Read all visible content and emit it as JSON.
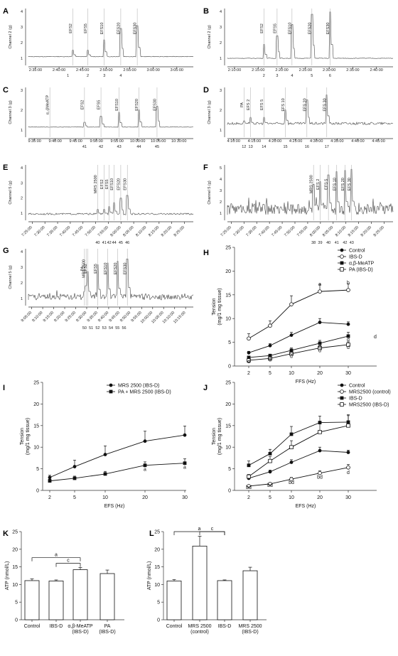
{
  "chart_data": [
    {
      "panel": "A",
      "type": "line",
      "ylabel": "Channel 2 (g)",
      "yticks": [
        "1",
        "2",
        "3",
        "4"
      ],
      "xticks": [
        "2:35:00",
        "2:40:00",
        "2:45:00",
        "2:50:00",
        "2:55:00",
        "3:00:00",
        "3:05:00"
      ],
      "events": [
        "EFS2",
        "EFS5",
        "EFS10",
        "EFS20",
        "EFS30"
      ],
      "markers": [
        "1",
        "2",
        "3",
        "4"
      ]
    },
    {
      "panel": "B",
      "type": "line",
      "ylabel": "Channel 2 (g)",
      "yticks": [
        "1",
        "2",
        "3",
        "4"
      ],
      "xticks": [
        "2:10:00",
        "2:15:00",
        "2:20:00",
        "2:25:00",
        "2:30:00",
        "2:35:00",
        "2:40:00"
      ],
      "events": [
        "EFS2",
        "EFS5",
        "EFS10",
        "EFS20",
        "EFS30"
      ],
      "markers": [
        "2",
        "3",
        "4",
        "5",
        "6"
      ]
    },
    {
      "panel": "C",
      "type": "line",
      "ylabel": "Channel 3 (g)",
      "yticks": [
        "1",
        "2",
        "3"
      ],
      "xticks": [
        "9:35:00",
        "9:40:00",
        "9:45:00",
        "9:50:00",
        "9:55:00",
        "10:00:00",
        "10:05:00",
        "10:10:00"
      ],
      "events": [
        "α,-βMeATP",
        "EFS2",
        "EFS5",
        "EFS10",
        "EFS20",
        "EFS30"
      ],
      "markers": [
        "41",
        "42",
        "43",
        "44",
        "45"
      ]
    },
    {
      "panel": "D",
      "type": "line",
      "ylabel": "Channel 3 (g)",
      "yticks": [
        "1",
        "2",
        "3"
      ],
      "xticks": [
        "4:10:00",
        "4:15:00",
        "4:20:00",
        "4:25:00",
        "4:30:00",
        "4:35:00",
        "4:40:00",
        "4:45:00"
      ],
      "events": [
        "PA",
        "EFS 2",
        "EFS 5",
        "EFS 10",
        "EFS 20",
        "EFS 30"
      ],
      "markers": [
        "12",
        "13",
        "14",
        "15",
        "16",
        "17"
      ]
    },
    {
      "panel": "E",
      "type": "line",
      "ylabel": "Channel 5 (g)",
      "yticks": [
        "1",
        "2",
        "3",
        "4"
      ],
      "xticks": [
        "7:25:00",
        "7:30:00",
        "7:35:00",
        "7:40:00",
        "7:45:00",
        "7:50:00",
        "7:55:00",
        "8:00:00",
        "8:05:00",
        "8:10:00",
        "8:15:00",
        "8:20:00",
        "8:25:00"
      ],
      "events": [
        "MRS 2500",
        "EFS2",
        "EFS5",
        "EFS10",
        "EFS20",
        "EFS30"
      ],
      "markers": [
        "40",
        "41",
        "42",
        "44",
        "45",
        "46"
      ]
    },
    {
      "panel": "F",
      "type": "line",
      "ylabel": "Channel 5 (g)",
      "yticks": [
        "1",
        "2",
        "3",
        "4",
        "5"
      ],
      "xticks": [
        "7:25:00",
        "7:30:00",
        "7:35:00",
        "7:40:00",
        "7:45:00",
        "7:50:00",
        "7:55:00",
        "8:00:00",
        "8:05:00",
        "8:10:00",
        "8:15:00",
        "8:20:00",
        "8:25:00"
      ],
      "events": [
        "MRS 2500",
        "EFS 2",
        "EFS 5",
        "EFS 10",
        "EFS 20",
        "EFS 30"
      ],
      "markers": [
        "38",
        "39",
        "40",
        "41",
        "42",
        "43"
      ]
    },
    {
      "panel": "G",
      "type": "line",
      "ylabel": "Channel 5 (g)",
      "yticks": [
        "1",
        "2",
        "3",
        "4"
      ],
      "xticks": [
        "9:05:00",
        "9:10:00",
        "9:15:00",
        "9:20:00",
        "9:25:00",
        "9:30:00",
        "9:35:00",
        "9:40:00",
        "9:45:00",
        "9:50:00",
        "9:55:00",
        "10:00:00",
        "10:05:00",
        "10:10:00",
        "10:15:00"
      ],
      "events": [
        "PA",
        "MRS 2500",
        "EFS2",
        "EFS5",
        "EFS10",
        "EFS20",
        "EFS30"
      ],
      "markers": [
        "50",
        "51",
        "52",
        "53",
        "54",
        "55",
        "56"
      ]
    },
    {
      "panel": "H",
      "type": "line",
      "xlabel": "FFS (Hz)",
      "ylabel": "Tension (mg/1 mg tissue)",
      "ylim": [
        0,
        25
      ],
      "yticks": [
        "0",
        "5",
        "10",
        "15",
        "20",
        "25"
      ],
      "x": [
        "2",
        "5",
        "10",
        "20",
        "30"
      ],
      "series": [
        {
          "name": "Control",
          "marker": "filled-circle",
          "values": [
            2.8,
            4.3,
            6.5,
            9.2,
            8.8
          ],
          "err": [
            0.3,
            0.4,
            0.6,
            0.8,
            0.5
          ]
        },
        {
          "name": "IBS-D",
          "marker": "open-circle",
          "values": [
            5.8,
            8.5,
            13,
            15.7,
            16
          ],
          "err": [
            1.0,
            1.0,
            1.8,
            1.5,
            1.3
          ]
        },
        {
          "name": "α,β-MeATP",
          "marker": "filled-square",
          "values": [
            1.8,
            2.2,
            3.3,
            4.8,
            6.3
          ],
          "err": [
            0.3,
            0.3,
            0.5,
            0.6,
            0.8
          ]
        },
        {
          "name": "PA (IBS-D)",
          "marker": "open-square",
          "values": [
            1.2,
            1.6,
            2.6,
            3.8,
            4.5
          ],
          "err": [
            0.2,
            0.3,
            0.4,
            0.5,
            0.6
          ]
        }
      ],
      "annotations": [
        "a",
        "b",
        "d",
        "d",
        "d",
        "d",
        "d",
        "d",
        "d",
        "d",
        "d",
        "d",
        "d"
      ]
    },
    {
      "panel": "I",
      "type": "line",
      "xlabel": "EFS (Hz)",
      "ylabel": "Tension (mg/1 mg tissue)",
      "ylim": [
        0,
        25
      ],
      "yticks": [
        "0",
        "5",
        "10",
        "15",
        "20",
        "25"
      ],
      "x": [
        "2",
        "5",
        "10",
        "20",
        "30"
      ],
      "series": [
        {
          "name": "MRS 2500 (IBS-D)",
          "marker": "filled-circle",
          "values": [
            3,
            5.5,
            8.3,
            11.4,
            12.8
          ],
          "err": [
            0.5,
            1.5,
            2.0,
            2.3,
            2.1
          ]
        },
        {
          "name": "PA + MRS 2500 (IBS-D)",
          "marker": "filled-square",
          "values": [
            2.2,
            2.8,
            3.8,
            5.8,
            6.3
          ],
          "err": [
            0.4,
            0.5,
            0.6,
            0.8,
            1.0
          ]
        }
      ],
      "annotations": [
        "a",
        "a"
      ]
    },
    {
      "panel": "J",
      "type": "line",
      "xlabel": "EFS (Hz)",
      "ylabel": "Tension (mg/1 mg tissue)",
      "ylim": [
        0,
        25
      ],
      "yticks": [
        "0",
        "5",
        "10",
        "15",
        "20",
        "25"
      ],
      "x": [
        "2",
        "5",
        "10",
        "20",
        "30"
      ],
      "series": [
        {
          "name": "Control",
          "marker": "filled-circle",
          "values": [
            2.8,
            4.3,
            6.5,
            9.2,
            8.8
          ],
          "err": [
            0.3,
            0.4,
            0.6,
            0.8,
            0.5
          ]
        },
        {
          "name": "MRS2500 (control)",
          "marker": "open-circle",
          "values": [
            1,
            1.5,
            2.6,
            4,
            5.3
          ],
          "err": [
            0.2,
            0.3,
            0.4,
            0.5,
            0.7
          ]
        },
        {
          "name": "IBS-D",
          "marker": "filled-square",
          "values": [
            5.8,
            8.5,
            13,
            15.7,
            15.8
          ],
          "err": [
            1.0,
            1.0,
            1.8,
            1.5,
            1.5
          ]
        },
        {
          "name": "MRS2500 (IBS-D)",
          "marker": "open-square",
          "values": [
            3.2,
            6.8,
            10,
            13.5,
            15
          ],
          "err": [
            0.5,
            1.0,
            1.5,
            2.0,
            2.5
          ]
        }
      ],
      "annotations": [
        "bd",
        "bd",
        "bd",
        "bd",
        "d"
      ]
    },
    {
      "panel": "K",
      "type": "bar",
      "ylabel": "ATP (nmol/L)",
      "ylim": [
        0,
        25
      ],
      "yticks": [
        "0",
        "5",
        "10",
        "15",
        "20",
        "25"
      ],
      "categories": [
        "Control",
        "IBS-D",
        "α,β-MeATP (IBS-D)",
        "PA (IBS-D)"
      ],
      "values": [
        11.1,
        11,
        14.2,
        13.1
      ],
      "err": [
        0.5,
        0.3,
        0.6,
        1.0
      ],
      "annotations": [
        "a",
        "c"
      ]
    },
    {
      "panel": "L",
      "type": "bar",
      "ylabel": "ATP (nmol/L)",
      "ylim": [
        0,
        25
      ],
      "yticks": [
        "0",
        "5",
        "10",
        "15",
        "20",
        "25"
      ],
      "categories": [
        "Control",
        "MRS 2500 (control)",
        "IBS-D",
        "MRS 2500 (IBS-D)"
      ],
      "values": [
        11,
        20.9,
        11.1,
        13.9
      ],
      "err": [
        0.4,
        2.8,
        0.2,
        1.0
      ],
      "annotations": [
        "a",
        "c"
      ]
    }
  ]
}
